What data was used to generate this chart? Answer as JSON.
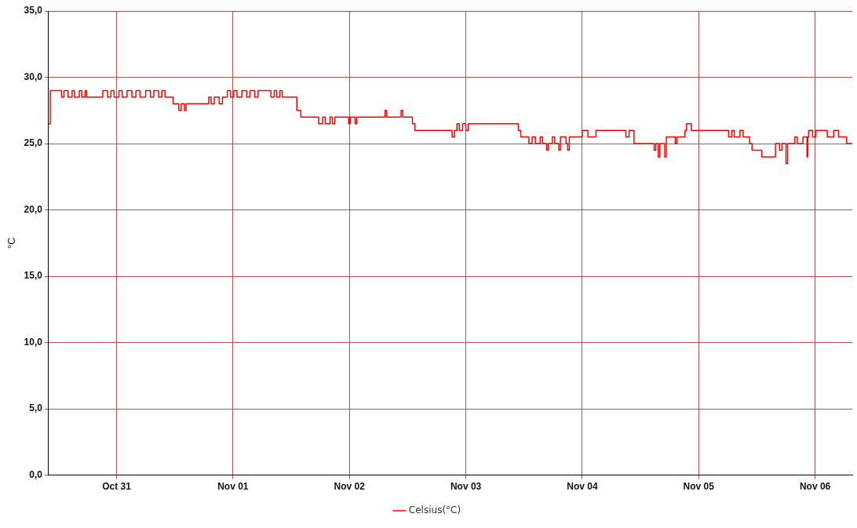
{
  "chart_data": {
    "type": "step",
    "ylabel": "°C",
    "xlim": [
      "--10-30T10:00",
      "--11-06T07:40"
    ],
    "xticks": [
      {
        "value": "--10-31",
        "label": "Oct 31"
      },
      {
        "value": "--11-01",
        "label": "Nov 01"
      },
      {
        "value": "--11-02",
        "label": "Nov 02"
      },
      {
        "value": "--11-03",
        "label": "Nov 03"
      },
      {
        "value": "--11-04",
        "label": "Nov 04"
      },
      {
        "value": "--11-05",
        "label": "Nov 05"
      },
      {
        "value": "--11-06",
        "label": "Nov 06"
      }
    ],
    "ylim": [
      0,
      35
    ],
    "yticks": [
      {
        "value": 0,
        "label": "0,0"
      },
      {
        "value": 5,
        "label": "5,0"
      },
      {
        "value": 10,
        "label": "10,0"
      },
      {
        "value": 15,
        "label": "15,0"
      },
      {
        "value": 20,
        "label": "20,0"
      },
      {
        "value": 25,
        "label": "25,0"
      },
      {
        "value": 30,
        "label": "30,0"
      },
      {
        "value": 35,
        "label": "35,0"
      }
    ],
    "grid": true,
    "legend": "bottom",
    "marker": "none",
    "line_style": "solid",
    "series": [
      {
        "name": "Celsius(°C)",
        "color": "#ff0000",
        "x": [
          "--10-30T10:00",
          "--10-30T10:20",
          "--10-30T12:40",
          "--10-30T13:10",
          "--10-30T14:00",
          "--10-30T14:50",
          "--10-30T15:20",
          "--10-30T16:20",
          "--10-30T16:50",
          "--10-30T17:30",
          "--10-30T17:50",
          "--10-30T21:10",
          "--10-30T22:10",
          "--10-30T22:50",
          "--10-30T23:30",
          "--10-31T00:30",
          "--10-31T01:10",
          "--10-31T02:10",
          "--10-31T03:10",
          "--10-31T04:00",
          "--10-31T04:50",
          "--10-31T06:00",
          "--10-31T07:00",
          "--10-31T07:40",
          "--10-31T08:40",
          "--10-31T09:20",
          "--10-31T10:00",
          "--10-31T11:40",
          "--10-31T12:50",
          "--10-31T13:20",
          "--10-31T14:00",
          "--10-31T14:20",
          "--10-31T19:00",
          "--10-31T19:30",
          "--10-31T20:10",
          "--10-31T21:10",
          "--10-31T21:50",
          "--10-31T22:50",
          "--10-31T23:30",
          "--11-01T00:10",
          "--11-01T00:50",
          "--11-01T01:50",
          "--11-01T02:50",
          "--11-01T03:30",
          "--11-01T04:30",
          "--11-01T05:10",
          "--11-01T07:50",
          "--11-01T08:30",
          "--11-01T09:00",
          "--11-01T09:40",
          "--11-01T10:10",
          "--11-01T13:10",
          "--11-01T14:00",
          "--11-01T17:40",
          "--11-01T18:30",
          "--11-01T19:00",
          "--11-01T20:00",
          "--11-01T20:30",
          "--11-01T21:00",
          "--11-01T23:50",
          "--11-02T00:10",
          "--11-02T01:10",
          "--11-02T01:30",
          "--11-02T07:20",
          "--11-02T07:40",
          "--11-02T10:40",
          "--11-02T11:00",
          "--11-02T13:00",
          "--11-02T13:30",
          "--11-02T21:10",
          "--11-02T21:40",
          "--11-02T22:10",
          "--11-02T22:40",
          "--11-02T23:20",
          "--11-03T00:00",
          "--11-03T00:30",
          "--11-03T10:50",
          "--11-03T11:20",
          "--11-03T13:00",
          "--11-03T13:40",
          "--11-03T14:20",
          "--11-03T15:20",
          "--11-03T15:50",
          "--11-03T16:40",
          "--11-03T17:00",
          "--11-03T17:50",
          "--11-03T18:20",
          "--11-03T19:10",
          "--11-03T19:30",
          "--11-03T20:40",
          "--11-03T21:00",
          "--11-03T21:20",
          "--11-04T00:00",
          "--11-04T01:10",
          "--11-04T02:50",
          "--11-04T09:00",
          "--11-04T09:40",
          "--11-04T10:40",
          "--11-04T14:50",
          "--11-04T15:10",
          "--11-04T15:40",
          "--11-04T16:00",
          "--11-04T17:00",
          "--11-04T17:20",
          "--11-04T19:10",
          "--11-04T19:30",
          "--11-04T21:10",
          "--11-04T21:30",
          "--11-04T22:30",
          "--11-05T06:10",
          "--11-05T06:50",
          "--11-05T07:20",
          "--11-05T08:30",
          "--11-05T09:10",
          "--11-05T10:30",
          "--11-05T11:00",
          "--11-05T13:00",
          "--11-05T15:50",
          "--11-05T16:40",
          "--11-05T17:10",
          "--11-05T18:00",
          "--11-05T18:20",
          "--11-05T19:50",
          "--11-05T20:20",
          "--11-05T21:30",
          "--11-05T22:20",
          "--11-05T22:30",
          "--11-05T22:40",
          "--11-05T23:30",
          "--11-06T00:10",
          "--11-06T02:30",
          "--11-06T03:50",
          "--11-06T04:50",
          "--11-06T06:30",
          "--11-06T07:40"
        ],
        "values": [
          26.5,
          29.0,
          28.5,
          29.0,
          28.5,
          29.0,
          28.5,
          29.0,
          28.5,
          29.0,
          28.5,
          29.0,
          28.5,
          29.0,
          28.5,
          29.0,
          28.5,
          29.0,
          28.5,
          29.0,
          28.5,
          29.0,
          28.5,
          29.0,
          28.5,
          29.0,
          28.5,
          28.0,
          27.5,
          28.0,
          27.5,
          28.0,
          28.5,
          28.0,
          28.5,
          28.0,
          28.5,
          29.0,
          28.5,
          29.0,
          28.5,
          29.0,
          28.5,
          29.0,
          28.5,
          29.0,
          28.5,
          29.0,
          28.5,
          29.0,
          28.5,
          27.5,
          27.0,
          26.5,
          27.0,
          26.5,
          27.0,
          26.5,
          27.0,
          26.5,
          27.0,
          26.5,
          27.0,
          27.5,
          27.0,
          27.5,
          27.0,
          26.5,
          26.0,
          25.5,
          26.0,
          26.5,
          26.0,
          26.5,
          26.0,
          26.5,
          26.0,
          25.5,
          25.0,
          25.5,
          25.0,
          25.5,
          25.0,
          24.5,
          25.0,
          25.5,
          25.0,
          24.5,
          25.5,
          25.0,
          24.5,
          25.5,
          26.0,
          25.5,
          26.0,
          25.5,
          26.0,
          25.0,
          24.5,
          25.0,
          24.0,
          25.0,
          24.0,
          25.5,
          25.0,
          25.5,
          26.0,
          26.5,
          26.0,
          25.5,
          26.0,
          25.5,
          26.0,
          25.5,
          25.0,
          24.5,
          24.0,
          25.0,
          24.5,
          25.0,
          23.5,
          25.0,
          25.5,
          25.0,
          25.5,
          24.0,
          25.5,
          26.0,
          25.5,
          26.0,
          25.5,
          26.0,
          25.5,
          25.0,
          25.0
        ]
      }
    ]
  }
}
